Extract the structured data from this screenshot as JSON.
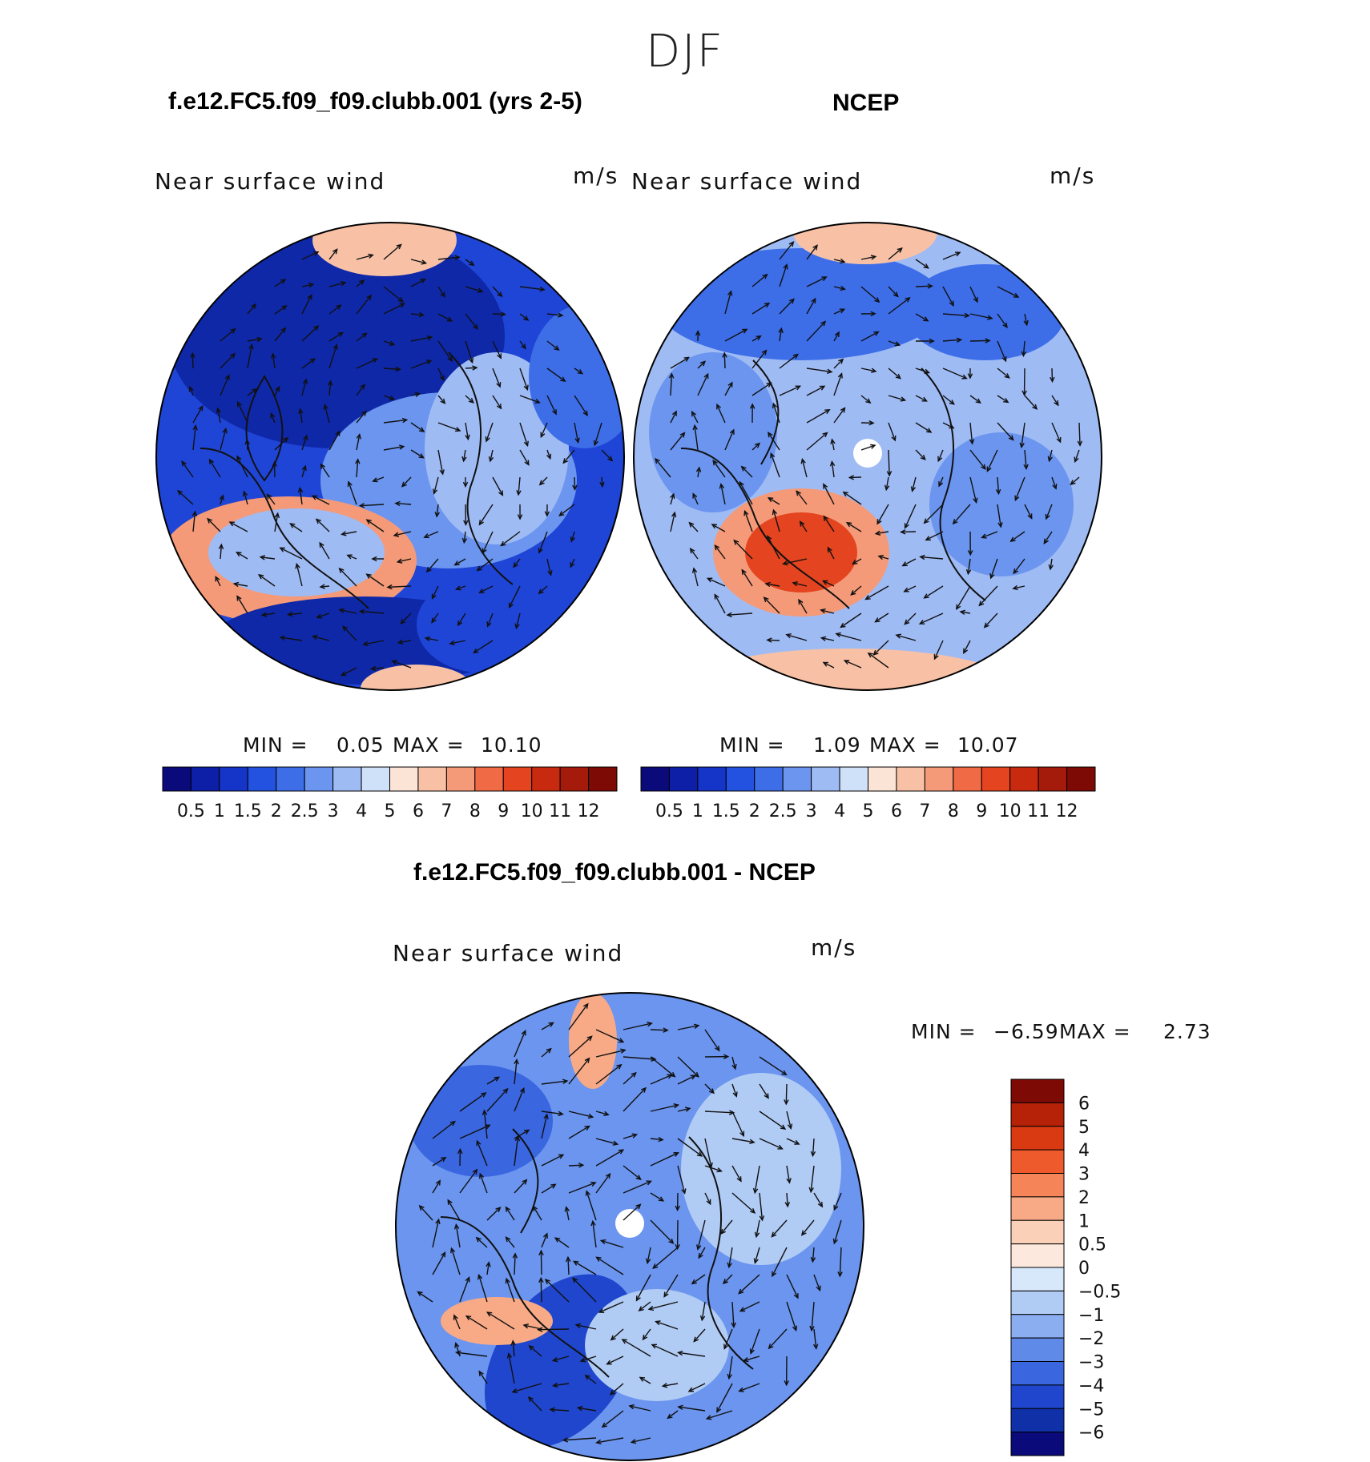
{
  "season": "DJF",
  "panels": [
    {
      "title": "f.e12.FC5.f09_f09.clubb.001 (yrs 2-5)",
      "variable": "Near surface wind",
      "units": "m/s",
      "min_label": "MIN =",
      "min": "0.05",
      "max_label": "MAX =",
      "max": "10.10"
    },
    {
      "title": "NCEP",
      "variable": "Near surface wind",
      "units": "m/s",
      "min_label": "MIN =",
      "min": "1.09",
      "max_label": "MAX =",
      "max": "10.07"
    },
    {
      "title": "f.e12.FC5.f09_f09.clubb.001 - NCEP",
      "variable": "Near surface wind",
      "units": "m/s",
      "min_label": "MIN =",
      "min": "−6.59",
      "max_label": "MAX =",
      "max": "2.73"
    }
  ],
  "chart_data": [
    {
      "type": "heatmap",
      "projection": "north polar stereographic",
      "title": "f.e12.FC5.f09_f09.clubb.001 (yrs 2-5)",
      "variable": "Near surface wind",
      "units": "m/s",
      "colorbar": {
        "orientation": "horizontal",
        "levels": [
          "0.5",
          "1",
          "1.5",
          "2",
          "2.5",
          "3",
          "4",
          "5",
          "6",
          "7",
          "8",
          "9",
          "10",
          "11",
          "12"
        ],
        "colors": [
          "#0a0a7a",
          "#0c1fa6",
          "#1535c8",
          "#2452e0",
          "#3d6ee8",
          "#6b95ee",
          "#9fbbf4",
          "#cfe1f8",
          "#fbe4d6",
          "#f8c1a6",
          "#f49a78",
          "#ef6a45",
          "#e4441f",
          "#c82a10",
          "#a51b0b",
          "#7d0a05"
        ]
      },
      "min": 0.05,
      "max": 10.1
    },
    {
      "type": "heatmap",
      "projection": "north polar stereographic",
      "title": "NCEP",
      "variable": "Near surface wind",
      "units": "m/s",
      "colorbar": {
        "orientation": "horizontal",
        "levels": [
          "0.5",
          "1",
          "1.5",
          "2",
          "2.5",
          "3",
          "4",
          "5",
          "6",
          "7",
          "8",
          "9",
          "10",
          "11",
          "12"
        ],
        "colors": [
          "#0a0a7a",
          "#0c1fa6",
          "#1535c8",
          "#2452e0",
          "#3d6ee8",
          "#6b95ee",
          "#9fbbf4",
          "#cfe1f8",
          "#fbe4d6",
          "#f8c1a6",
          "#f49a78",
          "#ef6a45",
          "#e4441f",
          "#c82a10",
          "#a51b0b",
          "#7d0a05"
        ]
      },
      "min": 1.09,
      "max": 10.07
    },
    {
      "type": "heatmap",
      "projection": "north polar stereographic",
      "title": "f.e12.FC5.f09_f09.clubb.001 - NCEP",
      "variable": "Near surface wind",
      "units": "m/s",
      "colorbar": {
        "orientation": "vertical",
        "levels": [
          "6",
          "5",
          "4",
          "3",
          "2",
          "1",
          "0.5",
          "0",
          "−0.5",
          "−1",
          "−2",
          "−3",
          "−4",
          "−5",
          "−6"
        ],
        "colors": [
          "#7d0a05",
          "#b52208",
          "#d93a12",
          "#ef5a2c",
          "#f58458",
          "#f8aa86",
          "#fbd0b8",
          "#fce8dc",
          "#d6e8fa",
          "#b0cbf4",
          "#8aaef0",
          "#5f8ae8",
          "#3a66e0",
          "#1f46cc",
          "#1030a8",
          "#0a0a7a"
        ]
      },
      "min": -6.59,
      "max": 2.73
    }
  ]
}
